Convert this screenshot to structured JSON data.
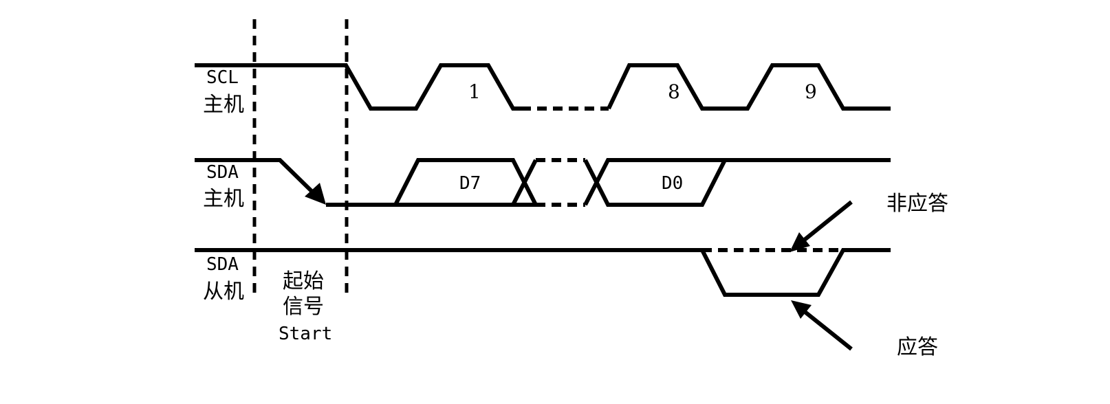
{
  "labels": {
    "scl": "SCL",
    "scl_role": "主机",
    "sda_master": "SDA",
    "sda_master_role": "主机",
    "sda_slave": "SDA",
    "sda_slave_role": "从机",
    "start_line1": "起始",
    "start_line2": "信号",
    "start_line3": "Start",
    "clock_1": "1",
    "clock_8": "8",
    "clock_9": "9",
    "bit_d7": "D7",
    "bit_d0": "D0",
    "nack": "非应答",
    "ack": "应答"
  }
}
